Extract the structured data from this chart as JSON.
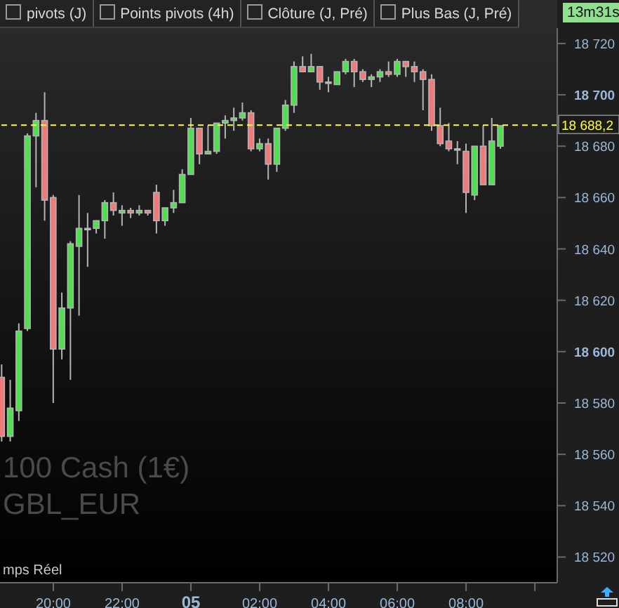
{
  "chart_data": {
    "type": "candlestick",
    "x": [
      "--01-04T18:30",
      "--01-04T18:45",
      "--01-04T19:00",
      "--01-04T19:15",
      "--01-04T19:30",
      "--01-04T19:45",
      "--01-04T20:00",
      "--01-04T20:15",
      "--01-04T20:30",
      "--01-04T20:45",
      "--01-04T21:00",
      "--01-04T21:15",
      "--01-04T21:30",
      "--01-04T21:45",
      "--01-04T22:00",
      "--01-04T22:15",
      "--01-04T22:30",
      "--01-04T22:45",
      "--01-04T23:00",
      "--01-04T23:15",
      "--01-04T23:30",
      "--01-04T23:45",
      "--01-05T00:00",
      "--01-05T00:15",
      "--01-05T00:30",
      "--01-05T00:45",
      "--01-05T01:00",
      "--01-05T01:15",
      "--01-05T01:30",
      "--01-05T01:45",
      "--01-05T02:00",
      "--01-05T02:15",
      "--01-05T02:30",
      "--01-05T02:45",
      "--01-05T03:00",
      "--01-05T03:15",
      "--01-05T03:30",
      "--01-05T03:45",
      "--01-05T04:00",
      "--01-05T04:15",
      "--01-05T04:30",
      "--01-05T04:45",
      "--01-05T05:00",
      "--01-05T05:15",
      "--01-05T05:30",
      "--01-05T05:45",
      "--01-05T06:00",
      "--01-05T06:15",
      "--01-05T06:30",
      "--01-05T06:45",
      "--01-05T07:00",
      "--01-05T07:15",
      "--01-05T07:30",
      "--01-05T07:45",
      "--01-05T08:00",
      "--01-05T08:15",
      "--01-05T08:30",
      "--01-05T08:45",
      "--01-05T09:00"
    ],
    "ohlc": [
      [
        18590,
        18595,
        18565,
        18567
      ],
      [
        18567,
        18589,
        18565,
        18578
      ],
      [
        18577,
        18611,
        18573,
        18608
      ],
      [
        18609,
        18685,
        18608,
        18684
      ],
      [
        18684,
        18693,
        18664,
        18690
      ],
      [
        18690,
        18701,
        18651,
        18659
      ],
      [
        18660,
        18661,
        18580,
        18601
      ],
      [
        18601,
        18623,
        18597,
        18617
      ],
      [
        18617,
        18643,
        18589,
        18642
      ],
      [
        18641,
        18661,
        18614,
        18648
      ],
      [
        18648,
        18654,
        18633,
        18648
      ],
      [
        18648,
        18651,
        18646,
        18651
      ],
      [
        18651,
        18659,
        18644,
        18658
      ],
      [
        18658,
        18662,
        18653,
        18655
      ],
      [
        18654,
        18657,
        18649,
        18655
      ],
      [
        18655,
        18656,
        18652,
        18654
      ],
      [
        18654,
        18657,
        18653,
        18655
      ],
      [
        18655,
        18655,
        18653,
        18654
      ],
      [
        18662,
        18665,
        18646,
        18651
      ],
      [
        18651,
        18656,
        18649,
        18656
      ],
      [
        18656,
        18663,
        18654,
        18658
      ],
      [
        18658,
        18671,
        18658,
        18669
      ],
      [
        18669,
        18691,
        18669,
        18687
      ],
      [
        18687,
        18687,
        18673,
        18677
      ],
      [
        18677,
        18688,
        18677,
        18678
      ],
      [
        18678,
        18689,
        18677,
        18689
      ],
      [
        18689,
        18692,
        18683,
        18690
      ],
      [
        18690,
        18695,
        18686,
        18691
      ],
      [
        18691,
        18697,
        18690,
        18693
      ],
      [
        18693,
        18694,
        18678,
        18679
      ],
      [
        18679,
        18683,
        18678,
        18681
      ],
      [
        18681,
        18683,
        18667,
        18673
      ],
      [
        18673,
        18687,
        18670,
        18687
      ],
      [
        18687,
        18698,
        18686,
        18696
      ],
      [
        18696,
        18713,
        18693,
        18711
      ],
      [
        18711,
        18715,
        18709,
        18709
      ],
      [
        18709,
        18716,
        18709,
        18711
      ],
      [
        18711,
        18711,
        18702,
        18705
      ],
      [
        18705,
        18707,
        18701,
        18705
      ],
      [
        18704,
        18709,
        18704,
        18709
      ],
      [
        18709,
        18714,
        18708,
        18713
      ],
      [
        18713,
        18714,
        18703,
        18709
      ],
      [
        18709,
        18710,
        18705,
        18706
      ],
      [
        18706,
        18708,
        18703,
        18707
      ],
      [
        18707,
        18710,
        18705,
        18709
      ],
      [
        18709,
        18713,
        18707,
        18708
      ],
      [
        18708,
        18714,
        18707,
        18713
      ],
      [
        18713,
        18713,
        18707,
        18711
      ],
      [
        18711,
        18713,
        18705,
        18709
      ],
      [
        18709,
        18710,
        18694,
        18706
      ],
      [
        18706,
        18708,
        18686,
        18688
      ],
      [
        18688,
        18695,
        18680,
        18681
      ],
      [
        18682,
        18689,
        18678,
        18679
      ],
      [
        18679,
        18682,
        18673,
        18679
      ],
      [
        18678,
        18681,
        18654,
        18662
      ],
      [
        18661,
        18680,
        18659,
        18680
      ],
      [
        18680,
        18688,
        18665,
        18665
      ],
      [
        18665,
        18691,
        18665,
        18682
      ],
      [
        18680,
        18688,
        18679,
        18688
      ]
    ],
    "colors": [
      "#f07a7a",
      "#4ee04e",
      "#4ee04e",
      "#4ee04e",
      "#4ee04e",
      "#f07a7a",
      "#f07a7a",
      "#4ee04e",
      "#4ee04e",
      "#4ee04e",
      "#c8c8c8",
      "#4ee04e",
      "#4ee04e",
      "#f07a7a",
      "#4ee04e",
      "#f07a7a",
      "#4ee04e",
      "#f07a7a",
      "#f07a7a",
      "#4ee04e",
      "#4ee04e",
      "#4ee04e",
      "#4ee04e",
      "#f07a7a",
      "#4ee04e",
      "#4ee04e",
      "#4ee04e",
      "#4ee04e",
      "#4ee04e",
      "#f07a7a",
      "#4ee04e",
      "#f07a7a",
      "#4ee04e",
      "#4ee04e",
      "#4ee04e",
      "#f07a7a",
      "#4ee04e",
      "#f07a7a",
      "#c8c8c8",
      "#4ee04e",
      "#4ee04e",
      "#f07a7a",
      "#f07a7a",
      "#4ee04e",
      "#4ee04e",
      "#f07a7a",
      "#4ee04e",
      "#f07a7a",
      "#f07a7a",
      "#f07a7a",
      "#f07a7a",
      "#f07a7a",
      "#f07a7a",
      "#c8c8c8",
      "#f07a7a",
      "#4ee04e",
      "#f07a7a",
      "#4ee04e",
      "#4ee04e"
    ],
    "xlim": [
      "--01-04T18:27",
      "--01-05T10:39"
    ],
    "xticks": [
      {
        "value": "--01-04T20:00",
        "label": "20:00"
      },
      {
        "value": "--01-04T22:00",
        "label": "22:00"
      },
      {
        "value": "--01-05T00:00",
        "label": "05"
      },
      {
        "value": "--01-05T02:00",
        "label": "02:00"
      },
      {
        "value": "--01-05T04:00",
        "label": "04:00"
      },
      {
        "value": "--01-05T06:00",
        "label": "06:00"
      },
      {
        "value": "--01-05T08:00",
        "label": "08:00"
      },
      {
        "value": "--01-05T10:00",
        "label": null
      }
    ],
    "ylim": [
      18510,
      18726
    ],
    "yticks": [
      {
        "value": 18520,
        "label": "18 520"
      },
      {
        "value": 18540,
        "label": "18 540"
      },
      {
        "value": 18560,
        "label": "18 560"
      },
      {
        "value": 18580,
        "label": "18 580"
      },
      {
        "value": 18600,
        "label": "18 600"
      },
      {
        "value": 18620,
        "label": "18 620"
      },
      {
        "value": 18640,
        "label": "18 640"
      },
      {
        "value": 18660,
        "label": "18 660"
      },
      {
        "value": 18680,
        "label": "18 680"
      },
      {
        "value": 18700,
        "label": "18 700"
      },
      {
        "value": 18720,
        "label": "18 720"
      }
    ],
    "ref_lines": [
      {
        "axis": "y",
        "value": 18688.2,
        "label": "18 688,2",
        "color": "#ffff33",
        "line_style": "dashed"
      }
    ],
    "annotations": [
      "pivots (J)",
      "Points pivots (4h)",
      "Clôture (J, Pré)",
      "Plus Bas (J, Pré)",
      "13m31s",
      "100 Cash (1€)",
      "GBL_EUR",
      "mps Réel"
    ]
  }
}
